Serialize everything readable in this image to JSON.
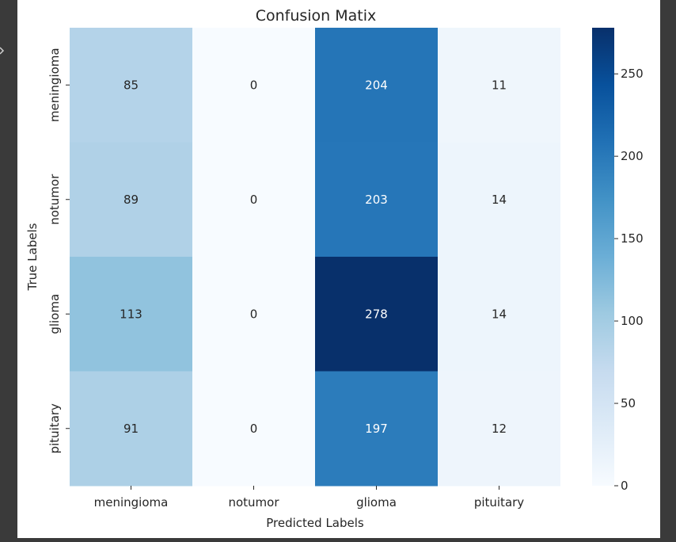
{
  "chart_data": {
    "type": "heatmap",
    "title": "Confusion Matix",
    "xlabel": "Predicted Labels",
    "ylabel": "True Labels",
    "x_categories": [
      "meningioma",
      "notumor",
      "glioma",
      "pituitary"
    ],
    "y_categories": [
      "meningioma",
      "notumor",
      "glioma",
      "pituitary"
    ],
    "values": [
      [
        85,
        0,
        204,
        11
      ],
      [
        89,
        0,
        203,
        14
      ],
      [
        113,
        0,
        278,
        14
      ],
      [
        91,
        0,
        197,
        12
      ]
    ],
    "colormap": "Blues",
    "colorbar": {
      "range": [
        0,
        278
      ],
      "ticks": [
        0,
        50,
        100,
        150,
        200,
        250
      ]
    },
    "grid": false
  },
  "colors": {
    "page_background": "#3a3a3a",
    "figure_background": "#ffffff",
    "colormap_low": "#f7fbff",
    "colormap_high": "#08306b",
    "text_dark": "#262626",
    "text_light": "#ffffff"
  },
  "icons": {
    "edge": "chevron-down-icon"
  }
}
